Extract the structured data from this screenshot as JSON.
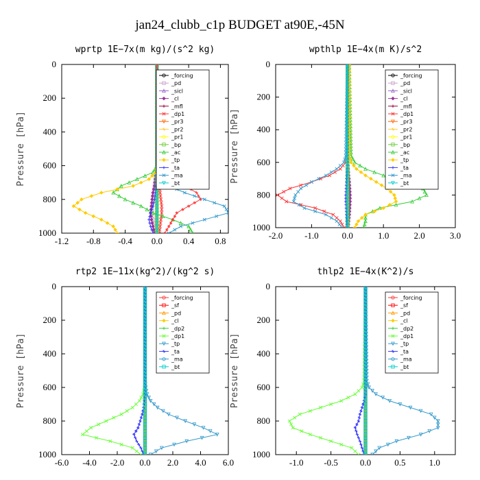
{
  "figure_title": "jan24_clubb_c1p  BUDGET at90E,-45N",
  "chart_data": [
    {
      "type": "line",
      "title": "wprtp   1E−7x(m kg)/(s^2 kg)",
      "ylabel": "Pressure [hPa]",
      "xlim": [
        -1.2,
        0.9
      ],
      "ylim": [
        0,
        1000
      ],
      "xticks": [
        -1.2,
        -0.8,
        -0.4,
        0.0,
        0.4,
        0.8
      ],
      "xtick_labels": [
        "-1.2",
        "-0.8",
        "-0.4",
        "0.0",
        "0.4",
        "0.8"
      ],
      "yticks": [
        0,
        200,
        400,
        600,
        800,
        1000
      ],
      "y": [
        0,
        600,
        640,
        680,
        720,
        760,
        800,
        840,
        880,
        920,
        960,
        1000
      ],
      "series": [
        {
          "name": "_forcing",
          "color": "#000000",
          "values": [
            0,
            0,
            0,
            0,
            0,
            0,
            0,
            0,
            0,
            0,
            0,
            0
          ]
        },
        {
          "name": "_pd",
          "color": "#c8a2c8",
          "values": [
            0,
            0,
            -0.01,
            -0.02,
            -0.03,
            -0.04,
            -0.05,
            -0.06,
            -0.06,
            -0.05,
            -0.04,
            -0.03
          ]
        },
        {
          "name": "_sicl",
          "color": "#9966cc",
          "values": [
            0,
            0,
            0,
            0,
            0,
            0,
            0,
            0,
            0,
            0,
            0,
            0
          ]
        },
        {
          "name": "_cl",
          "color": "#993399",
          "values": [
            0,
            0,
            -0.01,
            -0.02,
            -0.03,
            -0.05,
            -0.06,
            -0.07,
            -0.08,
            -0.07,
            -0.05,
            -0.03
          ]
        },
        {
          "name": "_mfl",
          "color": "#990033",
          "values": [
            0,
            0,
            0,
            0,
            0,
            0,
            0,
            0,
            0,
            0,
            0,
            0
          ]
        },
        {
          "name": "_dp1",
          "color": "#ff3333",
          "values": [
            0,
            0,
            0.01,
            0.02,
            0.03,
            0.04,
            0.05,
            0.06,
            0.06,
            0.05,
            0.04,
            0.03
          ]
        },
        {
          "name": "_pr3",
          "color": "#ff6600",
          "values": [
            0,
            0,
            0,
            0,
            0,
            0,
            0,
            0,
            0,
            0,
            0,
            0
          ]
        },
        {
          "name": "_pr2",
          "color": "#ffcc33",
          "values": [
            0,
            0,
            0,
            0,
            0,
            0,
            0,
            0,
            0,
            0,
            0,
            0
          ]
        },
        {
          "name": "_pr1",
          "color": "#ffff00",
          "values": [
            0,
            0,
            0,
            0,
            0,
            0,
            0,
            0,
            0,
            0,
            0,
            0
          ]
        },
        {
          "name": "_bp",
          "color": "#66cc33",
          "values": [
            0,
            0,
            0,
            0,
            0,
            0,
            0,
            0,
            0,
            0,
            0,
            0
          ]
        },
        {
          "name": "_ac",
          "color": "#33cc33",
          "values": [
            0,
            0,
            -0.05,
            -0.25,
            -0.45,
            -0.55,
            -0.4,
            -0.2,
            -0.05,
            0.2,
            0.4,
            0.45
          ]
        },
        {
          "name": "_tp",
          "color": "#ffcc00",
          "values": [
            0,
            0,
            -0.02,
            -0.1,
            -0.3,
            -0.7,
            -0.95,
            -1.05,
            -0.9,
            -0.7,
            -0.55,
            -0.5
          ]
        },
        {
          "name": "_ta",
          "color": "#3333ff",
          "values": [
            0,
            0,
            0,
            0,
            -0.01,
            -0.02,
            -0.03,
            -0.05,
            -0.08,
            -0.1,
            -0.08,
            -0.05
          ]
        },
        {
          "name": "_ma",
          "color": "#3399cc",
          "values": [
            0,
            0,
            0.01,
            0.05,
            0.15,
            0.35,
            0.6,
            0.85,
            0.9,
            0.6,
            0.3,
            0.15
          ]
        },
        {
          "name": "_bt",
          "color": "#00cccc",
          "values": [
            0,
            0,
            0,
            0,
            0,
            0,
            0,
            0,
            0,
            0,
            0,
            0
          ]
        }
      ],
      "extra_series": [
        {
          "color": "#ff3333",
          "values": [
            0,
            0,
            0.03,
            0.15,
            0.35,
            0.5,
            0.55,
            0.4,
            0.25,
            0.2,
            0.15,
            0.1
          ]
        }
      ]
    },
    {
      "type": "line",
      "title": "wpthlp   1E−4x(m K)/s^2",
      "ylabel": "Pressure [hPa]",
      "xlim": [
        -2.0,
        3.0
      ],
      "ylim": [
        0,
        1000
      ],
      "xticks": [
        -2.0,
        -1.0,
        0.0,
        1.0,
        2.0,
        3.0
      ],
      "xtick_labels": [
        "-2.0",
        "-1.0",
        "0.0",
        "1.0",
        "2.0",
        "3.0"
      ],
      "yticks": [
        0,
        200,
        400,
        600,
        800,
        1000
      ],
      "y": [
        0,
        560,
        600,
        640,
        680,
        720,
        760,
        800,
        840,
        880,
        920,
        960,
        1000
      ],
      "series": [
        {
          "name": "_forcing",
          "color": "#000000",
          "values": [
            0,
            0,
            0,
            0,
            0,
            0,
            0,
            0,
            0,
            0,
            0,
            0,
            0
          ]
        },
        {
          "name": "_pd",
          "color": "#c8a2c8",
          "values": [
            0,
            0,
            0,
            0.01,
            0.02,
            0.03,
            0.04,
            0.05,
            0.05,
            0.04,
            0.03,
            0.02,
            0.01
          ]
        },
        {
          "name": "_sicl",
          "color": "#9966cc",
          "values": [
            0,
            0,
            0,
            0,
            0,
            0,
            0,
            0,
            0,
            0,
            0,
            0,
            0
          ]
        },
        {
          "name": "_cl",
          "color": "#993399",
          "values": [
            0,
            0,
            0.01,
            0.02,
            0.03,
            0.05,
            0.06,
            0.07,
            0.07,
            0.06,
            0.05,
            0.03,
            0.02
          ]
        },
        {
          "name": "_mfl",
          "color": "#990033",
          "values": [
            0,
            0,
            0,
            0,
            0,
            0,
            0,
            0,
            0,
            0,
            0,
            0,
            0
          ]
        },
        {
          "name": "_dp1",
          "color": "#ff3333",
          "values": [
            0,
            0,
            -0.05,
            -0.2,
            -0.5,
            -1.0,
            -1.6,
            -1.95,
            -1.7,
            -0.9,
            -0.4,
            -0.2,
            -0.1
          ]
        },
        {
          "name": "_pr3",
          "color": "#ff6600",
          "values": [
            0,
            0,
            0,
            0,
            0,
            0,
            0,
            0,
            0,
            0,
            0,
            0,
            0
          ]
        },
        {
          "name": "_pr2",
          "color": "#ffcc33",
          "values": [
            0,
            0,
            0,
            0,
            0,
            0,
            0,
            0,
            0,
            0,
            0,
            0,
            0
          ]
        },
        {
          "name": "_pr1",
          "color": "#ffff00",
          "values": [
            0,
            0,
            0,
            0,
            0,
            0,
            0,
            0,
            0,
            0,
            0,
            0,
            0
          ]
        },
        {
          "name": "_bp",
          "color": "#66cc33",
          "values": [
            0,
            0,
            0,
            0,
            0,
            0,
            0,
            0,
            0,
            0,
            0,
            0,
            0
          ]
        },
        {
          "name": "_ac",
          "color": "#33cc33",
          "values": [
            0.05,
            0.1,
            0.2,
            0.5,
            1.0,
            1.6,
            2.1,
            2.2,
            1.8,
            0.9,
            0.5,
            0.5,
            0.45
          ]
        },
        {
          "name": "_tp",
          "color": "#ffcc00",
          "values": [
            0.05,
            0.05,
            0.1,
            0.25,
            0.5,
            0.8,
            1.1,
            1.3,
            1.35,
            1.0,
            0.5,
            0.3,
            0.2
          ]
        },
        {
          "name": "_ta",
          "color": "#3333ff",
          "values": [
            0,
            0,
            0,
            -0.01,
            -0.02,
            -0.03,
            -0.04,
            -0.05,
            -0.05,
            -0.04,
            -0.03,
            -0.02,
            -0.01
          ]
        },
        {
          "name": "_ma",
          "color": "#3399cc",
          "values": [
            0,
            -0.05,
            -0.1,
            -0.3,
            -0.6,
            -1.0,
            -1.3,
            -1.45,
            -1.5,
            -1.2,
            -0.6,
            -0.3,
            -0.15
          ]
        },
        {
          "name": "_bt",
          "color": "#00cccc",
          "values": [
            0,
            0,
            0,
            0,
            0,
            0,
            0,
            0,
            0,
            0,
            0,
            0,
            0
          ]
        }
      ],
      "extra_series": []
    },
    {
      "type": "line",
      "title": "rtp2   1E−11x(kg^2)/(kg^2 s)",
      "ylabel": "Pressure [hPa]",
      "xlim": [
        -6.0,
        6.0
      ],
      "ylim": [
        0,
        1000
      ],
      "xticks": [
        -6.0,
        -4.0,
        -2.0,
        0.0,
        2.0,
        4.0,
        6.0
      ],
      "xtick_labels": [
        "-6.0",
        "-4.0",
        "-2.0",
        "0.0",
        "2.0",
        "4.0",
        "6.0"
      ],
      "yticks": [
        0,
        200,
        400,
        600,
        800,
        1000
      ],
      "y": [
        0,
        560,
        600,
        640,
        680,
        720,
        760,
        800,
        840,
        880,
        920,
        960,
        1000
      ],
      "series": [
        {
          "name": "_forcing",
          "color": "#ff3333",
          "values": [
            0,
            0,
            0,
            0,
            0,
            0,
            0,
            0,
            0,
            0,
            0,
            0,
            0
          ]
        },
        {
          "name": "_sf",
          "color": "#ff0000",
          "values": [
            0,
            0,
            0,
            0,
            0,
            0,
            0,
            0,
            0,
            0,
            0,
            0,
            0
          ]
        },
        {
          "name": "_pd",
          "color": "#ff9900",
          "values": [
            0,
            0,
            0,
            0,
            0,
            0,
            0,
            0,
            0,
            0,
            0,
            0,
            0
          ]
        },
        {
          "name": "_cl",
          "color": "#ffcc00",
          "values": [
            0,
            0,
            0,
            0,
            0,
            0,
            0,
            0,
            0,
            0,
            0,
            0,
            0
          ]
        },
        {
          "name": "_dp2",
          "color": "#33cc33",
          "values": [
            0,
            0,
            0,
            0,
            0,
            0,
            0,
            0,
            0,
            0,
            0,
            0,
            0
          ]
        },
        {
          "name": "_dp1",
          "color": "#66ff33",
          "values": [
            0,
            0,
            -0.05,
            -0.15,
            -0.4,
            -0.9,
            -1.7,
            -2.8,
            -3.9,
            -4.5,
            -2.5,
            -0.9,
            -0.3
          ]
        },
        {
          "name": "_tp",
          "color": "#3399cc",
          "values": [
            0,
            0,
            0.05,
            0.15,
            0.4,
            0.9,
            1.7,
            2.9,
            4.2,
            5.2,
            3.0,
            1.2,
            0.4
          ]
        },
        {
          "name": "_ta",
          "color": "#3333ff",
          "values": [
            0,
            0,
            0,
            0,
            -0.05,
            -0.1,
            -0.2,
            -0.35,
            -0.5,
            -0.8,
            -0.6,
            -0.3,
            -0.1
          ]
        },
        {
          "name": "_ma",
          "color": "#3399cc",
          "values": [
            0,
            0,
            0,
            0,
            0,
            0,
            0,
            0,
            0,
            0,
            0,
            0,
            0
          ]
        },
        {
          "name": "_bt",
          "color": "#00cccc",
          "values": [
            0,
            0,
            0,
            0,
            0,
            0,
            0,
            0,
            0,
            0,
            0,
            0,
            0
          ]
        }
      ],
      "extra_series": []
    },
    {
      "type": "line",
      "title": "thlp2   1E−4x(K^2)/s",
      "ylabel": "Pressure [hPa]",
      "xlim": [
        -1.3,
        1.3
      ],
      "ylim": [
        0,
        1000
      ],
      "xticks": [
        -1.0,
        -0.5,
        0.0,
        0.5,
        1.0
      ],
      "xtick_labels": [
        "-1.0",
        "-0.5",
        "0.0",
        "0.5",
        "1.0"
      ],
      "yticks": [
        0,
        200,
        400,
        600,
        800,
        1000
      ],
      "y": [
        0,
        560,
        600,
        640,
        680,
        720,
        760,
        800,
        840,
        880,
        920,
        960,
        1000
      ],
      "series": [
        {
          "name": "_forcing",
          "color": "#ff3333",
          "values": [
            0,
            0,
            0,
            0,
            0,
            0,
            0,
            0,
            0,
            0,
            0,
            0,
            0
          ]
        },
        {
          "name": "_sf",
          "color": "#ff0000",
          "values": [
            0,
            0,
            0,
            0,
            0,
            0,
            0,
            0,
            0,
            0,
            0,
            0,
            0
          ]
        },
        {
          "name": "_pd",
          "color": "#ff9900",
          "values": [
            0,
            0,
            0,
            0,
            0,
            0,
            0,
            0,
            0,
            0,
            0,
            0,
            0
          ]
        },
        {
          "name": "_cl",
          "color": "#ffcc00",
          "values": [
            0,
            0,
            0,
            0,
            0,
            0,
            0,
            0,
            0,
            0,
            0,
            0,
            0
          ]
        },
        {
          "name": "_dp2",
          "color": "#33cc33",
          "values": [
            0,
            0,
            0,
            0,
            0,
            0,
            0,
            0,
            0,
            0,
            0,
            0,
            0
          ]
        },
        {
          "name": "_dp1",
          "color": "#66ff33",
          "values": [
            0,
            -0.02,
            -0.05,
            -0.15,
            -0.35,
            -0.65,
            -0.95,
            -1.1,
            -1.05,
            -0.8,
            -0.5,
            -0.2,
            -0.1
          ]
        },
        {
          "name": "_tp",
          "color": "#3399cc",
          "values": [
            0,
            0.02,
            0.05,
            0.15,
            0.35,
            0.65,
            0.95,
            1.05,
            1.05,
            0.8,
            0.45,
            0.2,
            0.1
          ]
        },
        {
          "name": "_ta",
          "color": "#3333ff",
          "values": [
            0,
            0,
            0,
            0,
            -0.02,
            -0.05,
            -0.08,
            -0.1,
            -0.15,
            -0.12,
            -0.08,
            -0.05,
            -0.02
          ]
        },
        {
          "name": "_ma",
          "color": "#3399cc",
          "values": [
            0,
            0,
            0,
            0,
            0,
            0,
            0,
            0,
            0,
            0,
            0,
            0,
            0
          ]
        },
        {
          "name": "_bt",
          "color": "#00cccc",
          "values": [
            0,
            0,
            0,
            0,
            0,
            0,
            0,
            0,
            0,
            0,
            0,
            0,
            0
          ]
        }
      ],
      "extra_series": []
    }
  ]
}
